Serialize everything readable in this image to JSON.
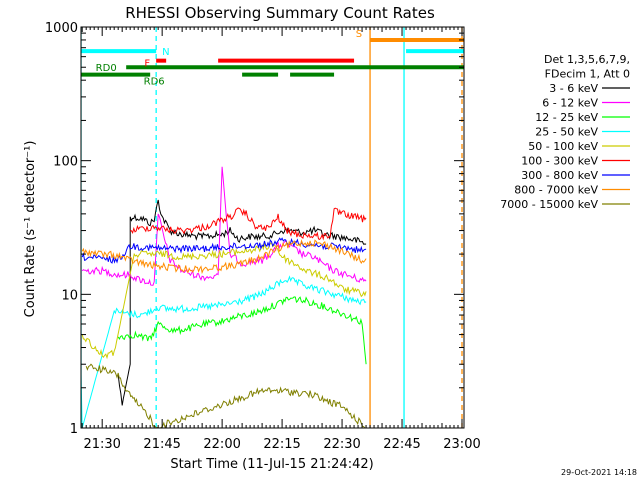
{
  "chart_data": {
    "type": "line",
    "title": "RHESSI Observing Summary Count Rates",
    "xlabel": "Start Time (11-Jul-15 21:24:42)",
    "ylabel": "Count Rate (s⁻¹ detector⁻¹)",
    "yscale": "log",
    "ylim": [
      1,
      1000
    ],
    "xlim": [
      "21:24:42",
      "23:00:30"
    ],
    "x_ticks": [
      "21:30",
      "21:45",
      "22:00",
      "22:15",
      "22:30",
      "22:45",
      "23:00"
    ],
    "y_ticks": [
      "1",
      "10",
      "100",
      "1000"
    ],
    "timestamp": "29-Oct-2021 14:18",
    "legend": {
      "placement": "right",
      "header": [
        "Det 1,3,5,6,7,9,",
        "FDecim 1, Att 0"
      ],
      "entries": [
        {
          "label": "3 - 6 keV",
          "color": "#000000"
        },
        {
          "label": "6 - 12 keV",
          "color": "#ff00ff"
        },
        {
          "label": "12 - 25 keV",
          "color": "#00ff00"
        },
        {
          "label": "25 - 50 keV",
          "color": "#00ffff"
        },
        {
          "label": "50 - 100 keV",
          "color": "#cccc00"
        },
        {
          "label": "100 - 300 keV",
          "color": "#ff0000"
        },
        {
          "label": "300 - 800 keV",
          "color": "#0000ff"
        },
        {
          "label": "800 - 7000 keV",
          "color": "#ff8c00"
        },
        {
          "label": "7000 - 15000 keV",
          "color": "#808000"
        }
      ]
    },
    "flags": [
      {
        "label": "N",
        "color": "#00ffff",
        "segments": [
          [
            "21:24:42",
            "21:43:30"
          ],
          [
            "22:46",
            "23:00:30"
          ]
        ],
        "level": 660
      },
      {
        "label": "F",
        "color": "#ff0000",
        "segments": [
          [
            "21:43:30",
            "21:46"
          ],
          [
            "21:59",
            "22:33"
          ]
        ],
        "level": 560
      },
      {
        "label": "S",
        "color": "#ff8c00",
        "segments": [
          [
            "22:37",
            "23:00:30"
          ]
        ],
        "level": 800
      },
      {
        "label": "RD0",
        "color": "#008000",
        "segments": [
          [
            "21:36",
            "23:00:30"
          ]
        ],
        "level": 500
      },
      {
        "label": "RD6",
        "color": "#008000",
        "segments": [
          [
            "21:24:42",
            "21:42"
          ],
          [
            "22:05",
            "22:14"
          ],
          [
            "22:17",
            "22:28"
          ]
        ],
        "level": 440
      }
    ],
    "vertical_lines": [
      {
        "time": "21:24:42",
        "color": "#00ffff",
        "style": "solid"
      },
      {
        "time": "21:43:30",
        "color": "#00ffff",
        "style": "dashed"
      },
      {
        "time": "22:37",
        "color": "#ff8c00",
        "style": "solid"
      },
      {
        "time": "22:45:30",
        "color": "#00ffff",
        "style": "solid"
      },
      {
        "time": "23:00:00",
        "color": "#ff8c00",
        "style": "dashed"
      }
    ],
    "series": [
      {
        "name": "3 - 6 keV",
        "color": "#000000",
        "points": [
          [
            "21:34",
            2.5
          ],
          [
            "21:35",
            1.5
          ],
          [
            "21:37",
            3
          ],
          [
            "21:37",
            38
          ],
          [
            "21:40",
            37
          ],
          [
            "21:42",
            34
          ],
          [
            "21:43",
            36
          ],
          [
            "21:44",
            50
          ],
          [
            "21:45",
            38
          ],
          [
            "21:47",
            30
          ],
          [
            "21:50",
            28
          ],
          [
            "21:55",
            27
          ],
          [
            "22:00",
            28
          ],
          [
            "22:02",
            30
          ],
          [
            "22:04",
            26
          ],
          [
            "22:07",
            27
          ],
          [
            "22:10",
            27
          ],
          [
            "22:13",
            28
          ],
          [
            "22:15",
            30
          ],
          [
            "22:17",
            30
          ],
          [
            "22:20",
            29
          ],
          [
            "22:23",
            30
          ],
          [
            "22:26",
            28
          ],
          [
            "22:29",
            27
          ],
          [
            "22:32",
            26
          ],
          [
            "22:36",
            24
          ]
        ]
      },
      {
        "name": "6 - 12 keV",
        "color": "#ff00ff",
        "points": [
          [
            "21:25",
            15
          ],
          [
            "21:30",
            15
          ],
          [
            "21:34",
            14
          ],
          [
            "21:37",
            14
          ],
          [
            "21:39",
            13
          ],
          [
            "21:41",
            12.5
          ],
          [
            "21:43",
            12
          ],
          [
            "21:44",
            40
          ],
          [
            "21:45",
            30
          ],
          [
            "21:47",
            18
          ],
          [
            "21:50",
            15
          ],
          [
            "21:55",
            13.5
          ],
          [
            "21:59",
            13.5
          ],
          [
            "22:00",
            90
          ],
          [
            "22:01",
            40
          ],
          [
            "22:02",
            20
          ],
          [
            "22:05",
            17
          ],
          [
            "22:10",
            18
          ],
          [
            "22:12",
            20
          ],
          [
            "22:14",
            23
          ],
          [
            "22:16",
            24
          ],
          [
            "22:18",
            22
          ],
          [
            "22:20",
            20
          ],
          [
            "22:23",
            19
          ],
          [
            "22:25",
            17
          ],
          [
            "22:28",
            15
          ],
          [
            "22:31",
            14
          ],
          [
            "22:34",
            13
          ],
          [
            "22:36",
            12.5
          ]
        ]
      },
      {
        "name": "12 - 25 keV",
        "color": "#00ff00",
        "points": [
          [
            "21:34",
            4.8
          ],
          [
            "21:38",
            5
          ],
          [
            "21:42",
            4.6
          ],
          [
            "21:44",
            6
          ],
          [
            "21:48",
            5.3
          ],
          [
            "21:52",
            5.6
          ],
          [
            "21:56",
            6
          ],
          [
            "22:00",
            6.3
          ],
          [
            "22:04",
            6.8
          ],
          [
            "22:08",
            7.2
          ],
          [
            "22:11",
            7.8
          ],
          [
            "22:14",
            8.5
          ],
          [
            "22:16",
            9.2
          ],
          [
            "22:18",
            9.3
          ],
          [
            "22:21",
            8.9
          ],
          [
            "22:24",
            8.4
          ],
          [
            "22:27",
            7.8
          ],
          [
            "22:30",
            7.2
          ],
          [
            "22:33",
            6.6
          ],
          [
            "22:35",
            6.2
          ],
          [
            "22:36",
            3
          ]
        ]
      },
      {
        "name": "25 - 50 keV",
        "color": "#00ffff",
        "points": [
          [
            "21:24:42",
            2.5
          ],
          [
            "21:25",
            1
          ],
          [
            "21:33",
            7.5
          ],
          [
            "21:36",
            7.2
          ],
          [
            "21:40",
            7
          ],
          [
            "21:44",
            8
          ],
          [
            "21:46",
            7.8
          ],
          [
            "21:50",
            7.8
          ],
          [
            "21:55",
            8
          ],
          [
            "22:00",
            8.3
          ],
          [
            "22:04",
            8.8
          ],
          [
            "22:08",
            9.5
          ],
          [
            "22:11",
            10.5
          ],
          [
            "22:14",
            12
          ],
          [
            "22:16",
            13
          ],
          [
            "22:18",
            12.5
          ],
          [
            "22:20",
            11.8
          ],
          [
            "22:24",
            10.8
          ],
          [
            "22:28",
            10
          ],
          [
            "22:31",
            9.4
          ],
          [
            "22:33",
            9
          ],
          [
            "22:36",
            8.6
          ]
        ]
      },
      {
        "name": "50 - 100 keV",
        "color": "#cccc00",
        "points": [
          [
            "21:25",
            5
          ],
          [
            "21:28",
            4
          ],
          [
            "21:30",
            3.5
          ],
          [
            "21:33",
            3.6
          ],
          [
            "21:38",
            20
          ],
          [
            "21:45",
            20
          ],
          [
            "21:50",
            19
          ],
          [
            "21:55",
            19.5
          ],
          [
            "22:00",
            20
          ],
          [
            "22:05",
            21
          ],
          [
            "22:10",
            22
          ],
          [
            "22:13",
            24
          ],
          [
            "22:15",
            19
          ],
          [
            "22:18",
            17
          ],
          [
            "22:21",
            15
          ],
          [
            "22:24",
            14
          ],
          [
            "22:27",
            13
          ],
          [
            "22:30",
            11
          ],
          [
            "22:33",
            10.5
          ],
          [
            "22:36",
            10
          ]
        ]
      },
      {
        "name": "100 - 300 keV",
        "color": "#ff0000",
        "points": [
          [
            "21:37",
            30
          ],
          [
            "21:40",
            31
          ],
          [
            "21:43",
            32
          ],
          [
            "21:45",
            31
          ],
          [
            "21:48",
            30
          ],
          [
            "21:52",
            30.5
          ],
          [
            "21:56",
            32
          ],
          [
            "22:00",
            36
          ],
          [
            "22:02",
            38
          ],
          [
            "22:04",
            42
          ],
          [
            "22:06",
            40
          ],
          [
            "22:08",
            33
          ],
          [
            "22:10",
            31
          ],
          [
            "22:12",
            32
          ],
          [
            "22:14",
            38
          ],
          [
            "22:16",
            30
          ],
          [
            "22:19",
            28
          ],
          [
            "22:22",
            27.5
          ],
          [
            "22:25",
            27
          ],
          [
            "22:27",
            28
          ],
          [
            "22:28",
            42
          ],
          [
            "22:30",
            40
          ],
          [
            "22:33",
            38
          ],
          [
            "22:36",
            36
          ]
        ]
      },
      {
        "name": "300 - 800 keV",
        "color": "#0000ff",
        "points": [
          [
            "21:25",
            19
          ],
          [
            "21:30",
            18.5
          ],
          [
            "21:34",
            18
          ],
          [
            "21:37",
            23
          ],
          [
            "21:41",
            22.5
          ],
          [
            "21:45",
            22
          ],
          [
            "21:50",
            22
          ],
          [
            "21:55",
            22
          ],
          [
            "22:00",
            22.5
          ],
          [
            "22:05",
            23
          ],
          [
            "22:10",
            23.5
          ],
          [
            "22:15",
            25
          ],
          [
            "22:20",
            24
          ],
          [
            "22:25",
            23
          ],
          [
            "22:30",
            22.5
          ],
          [
            "22:36",
            21
          ]
        ]
      },
      {
        "name": "800 - 7000 keV",
        "color": "#ff8c00",
        "points": [
          [
            "21:25",
            21
          ],
          [
            "21:30",
            20
          ],
          [
            "21:34",
            19.5
          ],
          [
            "21:37",
            18
          ],
          [
            "21:42",
            16.5
          ],
          [
            "21:46",
            16
          ],
          [
            "21:50",
            15.5
          ],
          [
            "21:55",
            15.5
          ],
          [
            "22:00",
            16
          ],
          [
            "22:05",
            17
          ],
          [
            "22:10",
            19
          ],
          [
            "22:14",
            22
          ],
          [
            "22:18",
            24
          ],
          [
            "22:22",
            24.5
          ],
          [
            "22:26",
            23.5
          ],
          [
            "22:30",
            21
          ],
          [
            "22:33",
            19
          ],
          [
            "22:36",
            17.5
          ]
        ]
      },
      {
        "name": "7000 - 15000 keV",
        "color": "#808000",
        "points": [
          [
            "21:26",
            2.9
          ],
          [
            "21:29",
            2.8
          ],
          [
            "21:32",
            2.6
          ],
          [
            "21:34",
            2.5
          ],
          [
            "21:36",
            1.9
          ],
          [
            "21:38",
            1.6
          ],
          [
            "21:40",
            1.4
          ],
          [
            "21:42",
            1.2
          ],
          [
            "21:43",
            1
          ],
          [
            "22:10",
            1.9
          ],
          [
            "22:14",
            1.9
          ],
          [
            "22:18",
            1.85
          ],
          [
            "22:22",
            1.8
          ],
          [
            "22:26",
            1.6
          ],
          [
            "22:30",
            1.45
          ],
          [
            "22:33",
            1.2
          ],
          [
            "22:36",
            1
          ]
        ]
      }
    ]
  }
}
